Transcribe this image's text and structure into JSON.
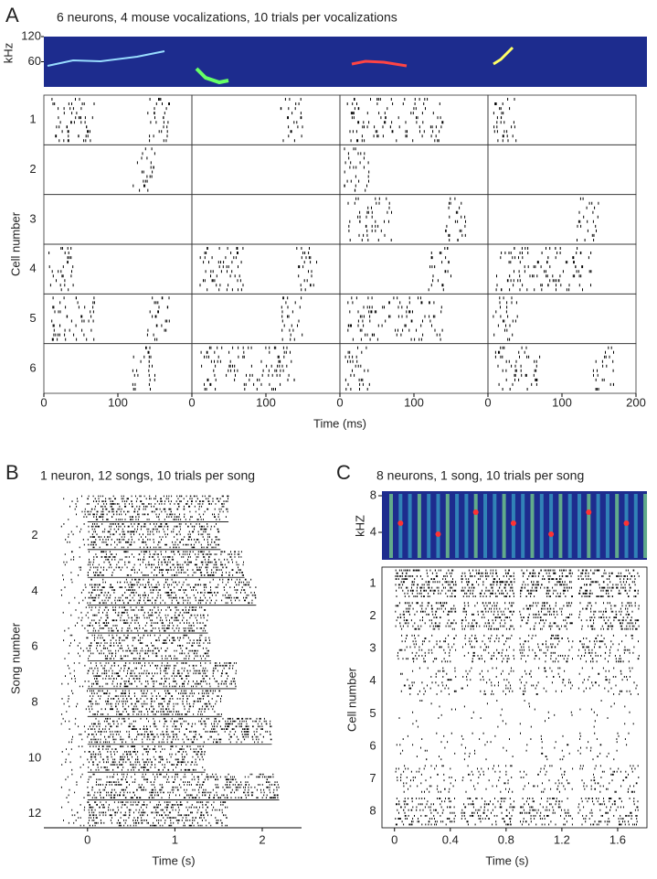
{
  "chart_data": [
    {
      "type": "raster",
      "panel": "A",
      "title": "6 neurons, 4 mouse vocalizations, 10 trials per vocalizations",
      "xlabel": "Time (ms)",
      "ylabel": "Cell number",
      "categories": [
        "1",
        "2",
        "3",
        "4",
        "5",
        "6"
      ],
      "spectrogram_ylabel": "kHz",
      "spectrogram_ylim": [
        0,
        120
      ],
      "spectrogram_yticks": [
        60,
        120
      ],
      "subplots": [
        {
          "xlim": [
            0,
            200
          ],
          "xticks": [
            0,
            100
          ]
        },
        {
          "xlim": [
            0,
            200
          ],
          "xticks": [
            0,
            100
          ]
        },
        {
          "xlim": [
            0,
            200
          ],
          "xticks": [
            0,
            100
          ]
        },
        {
          "xlim": [
            0,
            200
          ],
          "xticks": [
            0,
            100,
            200
          ]
        }
      ]
    },
    {
      "type": "raster",
      "panel": "B",
      "title": "1 neuron, 12 songs, 10 trials per song",
      "xlabel": "Time (s)",
      "ylabel": "Song number",
      "categories": [
        null,
        "2",
        null,
        "4",
        null,
        "6",
        null,
        "8",
        null,
        "10",
        null,
        "12"
      ],
      "xlim": [
        -0.5,
        2.45
      ],
      "xticks": [
        0,
        1,
        2
      ]
    },
    {
      "type": "raster",
      "panel": "C",
      "title": "8 neurons, 1 song, 10 trials per song",
      "xlabel": "Time (s)",
      "ylabel": "Cell number",
      "categories": [
        "1",
        "2",
        "3",
        "4",
        "5",
        "6",
        "7",
        "8"
      ],
      "spectrogram_ylabel": "kHZ",
      "spectrogram_ylim": [
        1,
        8.5
      ],
      "spectrogram_yticks": [
        4,
        8
      ],
      "xlim": [
        -0.09,
        1.81
      ],
      "xticks": [
        0,
        0.4,
        0.8,
        1.2,
        1.6
      ]
    }
  ]
}
